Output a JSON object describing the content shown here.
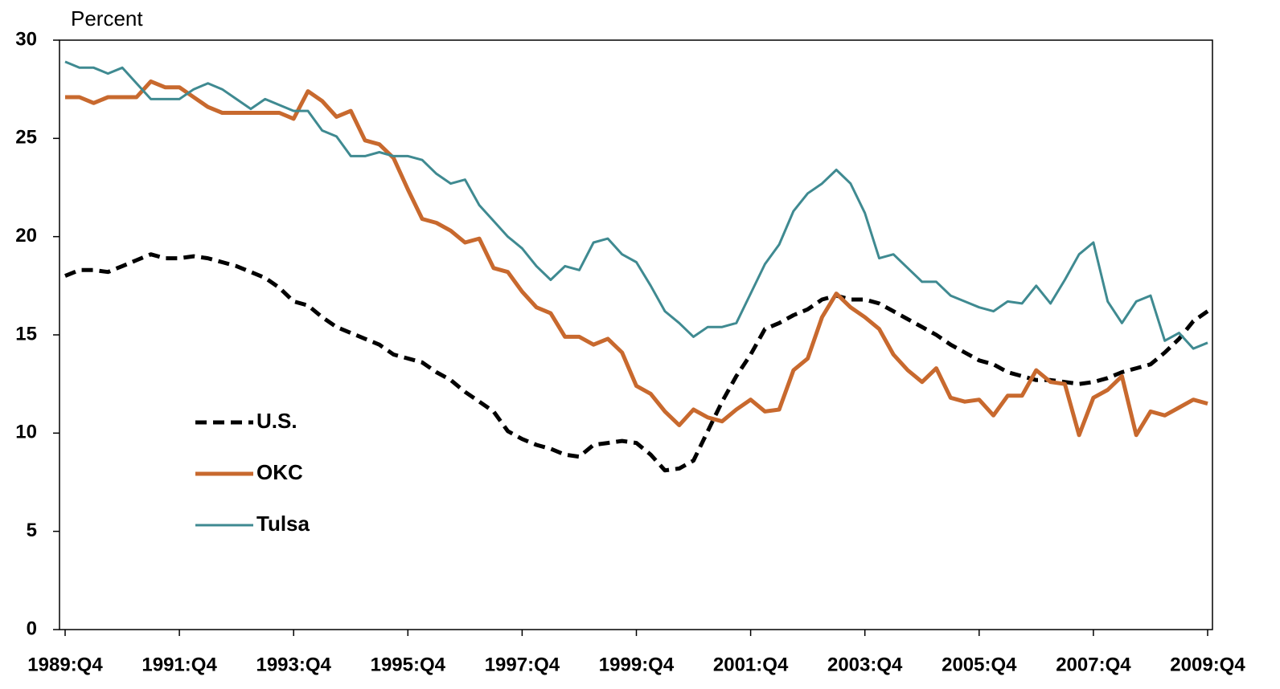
{
  "chart_data": {
    "type": "line",
    "y_label": "Percent",
    "categories": [
      "1989:Q4",
      null,
      null,
      null,
      null,
      null,
      null,
      null,
      "1991:Q4",
      null,
      null,
      null,
      null,
      null,
      null,
      null,
      "1993:Q4",
      null,
      null,
      null,
      null,
      null,
      null,
      null,
      "1995:Q4",
      null,
      null,
      null,
      null,
      null,
      null,
      null,
      "1997:Q4",
      null,
      null,
      null,
      null,
      null,
      null,
      null,
      "1999:Q4",
      null,
      null,
      null,
      null,
      null,
      null,
      null,
      "2001:Q4",
      null,
      null,
      null,
      null,
      null,
      null,
      null,
      "2003:Q4",
      null,
      null,
      null,
      null,
      null,
      null,
      null,
      "2005:Q4",
      null,
      null,
      null,
      null,
      null,
      null,
      null,
      "2007:Q4",
      null,
      null,
      null,
      null,
      null,
      null,
      null,
      "2009:Q4"
    ],
    "series": [
      {
        "name": "U.S.",
        "color": "#000000",
        "style": "dashed",
        "values": [
          18.0,
          18.3,
          18.3,
          18.2,
          18.5,
          18.8,
          19.1,
          18.9,
          18.9,
          19.0,
          18.9,
          18.7,
          18.5,
          18.2,
          17.9,
          17.4,
          16.7,
          16.5,
          15.9,
          15.4,
          15.1,
          14.8,
          14.5,
          14.0,
          13.8,
          13.6,
          13.1,
          12.7,
          12.1,
          11.6,
          11.1,
          10.1,
          9.7,
          9.4,
          9.2,
          8.9,
          8.8,
          9.4,
          9.5,
          9.6,
          9.5,
          8.9,
          8.1,
          8.2,
          8.6,
          10.1,
          11.6,
          12.9,
          14.0,
          15.3,
          15.6,
          16.0,
          16.3,
          16.8,
          17.0,
          16.8,
          16.8,
          16.6,
          16.2,
          15.8,
          15.4,
          15.0,
          14.5,
          14.1,
          13.7,
          13.5,
          13.1,
          12.9,
          12.7,
          12.7,
          12.6,
          12.5,
          12.6,
          12.8,
          13.1,
          13.3,
          13.5,
          14.1,
          14.8,
          15.7,
          16.2
        ]
      },
      {
        "name": "OKC",
        "color": "#c8692e",
        "style": "solid",
        "values": [
          27.1,
          27.1,
          26.8,
          27.1,
          27.1,
          27.1,
          27.9,
          27.6,
          27.6,
          27.1,
          26.6,
          26.3,
          26.3,
          26.3,
          26.3,
          26.3,
          26.0,
          27.4,
          26.9,
          26.1,
          26.4,
          24.9,
          24.7,
          24.0,
          22.4,
          20.9,
          20.7,
          20.3,
          19.7,
          19.9,
          18.4,
          18.2,
          17.2,
          16.4,
          16.1,
          14.9,
          14.9,
          14.5,
          14.8,
          14.1,
          12.4,
          12.0,
          11.1,
          10.4,
          11.2,
          10.8,
          10.6,
          11.2,
          11.7,
          11.1,
          11.2,
          13.2,
          13.8,
          15.9,
          17.1,
          16.4,
          15.9,
          15.3,
          14.0,
          13.2,
          12.6,
          13.3,
          11.8,
          11.6,
          11.7,
          10.9,
          11.9,
          11.9,
          13.2,
          12.6,
          12.5,
          9.9,
          11.8,
          12.2,
          12.9,
          9.9,
          11.1,
          10.9,
          11.3,
          11.7,
          11.5
        ]
      },
      {
        "name": "Tulsa",
        "color": "#3f8a91",
        "style": "thin",
        "values": [
          28.9,
          28.6,
          28.6,
          28.3,
          28.6,
          27.8,
          27.0,
          27.0,
          27.0,
          27.5,
          27.8,
          27.5,
          27.0,
          26.5,
          27.0,
          26.7,
          26.4,
          26.4,
          25.4,
          25.1,
          24.1,
          24.1,
          24.3,
          24.1,
          24.1,
          23.9,
          23.2,
          22.7,
          22.9,
          21.6,
          20.8,
          20.0,
          19.4,
          18.5,
          17.8,
          18.5,
          18.3,
          19.7,
          19.9,
          19.1,
          18.7,
          17.5,
          16.2,
          15.6,
          14.9,
          15.4,
          15.4,
          15.6,
          17.1,
          18.6,
          19.6,
          21.3,
          22.2,
          22.7,
          23.4,
          22.7,
          21.2,
          18.9,
          19.1,
          18.4,
          17.7,
          17.7,
          17.0,
          16.7,
          16.4,
          16.2,
          16.7,
          16.6,
          17.5,
          16.6,
          17.8,
          19.1,
          19.7,
          16.7,
          15.6,
          16.7,
          17.0,
          14.7,
          15.1,
          14.3,
          14.6
        ]
      }
    ],
    "ylim": [
      0,
      30
    ],
    "yticks": [
      0,
      5,
      10,
      15,
      20,
      25,
      30
    ],
    "grid": false,
    "legend": "center-left"
  }
}
